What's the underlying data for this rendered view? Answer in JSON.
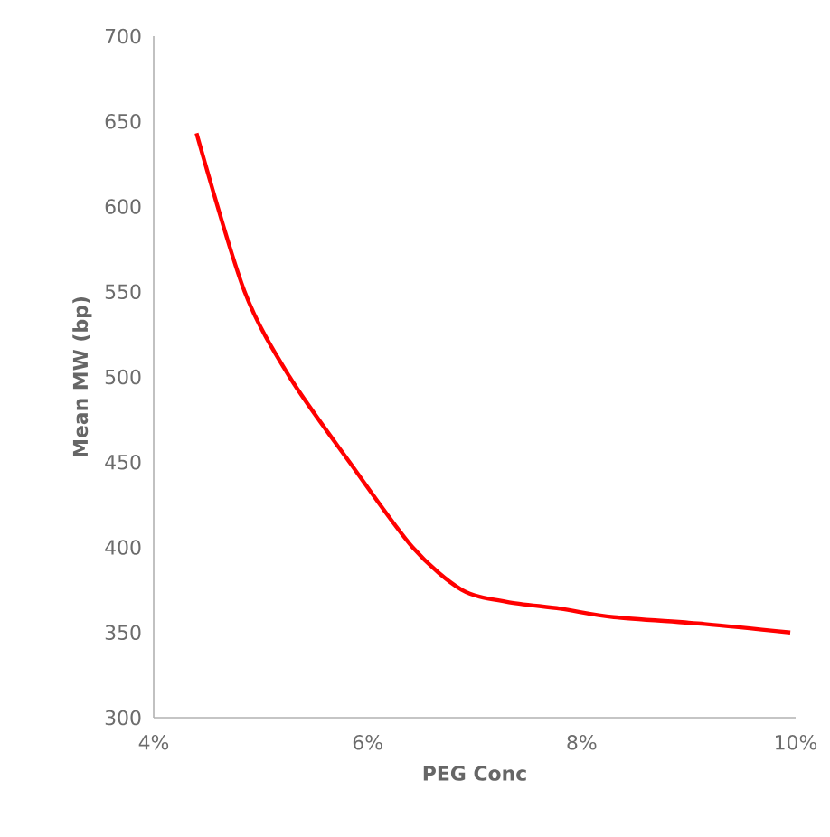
{
  "chart_data": {
    "type": "line",
    "xlabel": "PEG Conc",
    "ylabel": "Mean MW (bp)",
    "x": [
      4.4,
      4.85,
      5.27,
      5.83,
      6.42,
      6.88,
      7.3,
      7.8,
      8.3,
      9.15,
      9.95
    ],
    "series": [
      {
        "color": "#ff0000",
        "values": [
          643,
          550,
          500,
          450,
          400,
          375,
          368,
          364,
          359,
          355,
          350
        ]
      }
    ],
    "xlim": [
      4,
      10
    ],
    "xticks": [
      {
        "value": 4,
        "label": "4%"
      },
      {
        "value": 6,
        "label": "6%"
      },
      {
        "value": 8,
        "label": "8%"
      },
      {
        "value": 10,
        "label": "10%"
      }
    ],
    "ylim": [
      300,
      700
    ],
    "yticks": [
      300,
      350,
      400,
      450,
      500,
      550,
      600,
      650,
      700
    ],
    "grid": false,
    "marker": "none",
    "line_style": "solid"
  }
}
